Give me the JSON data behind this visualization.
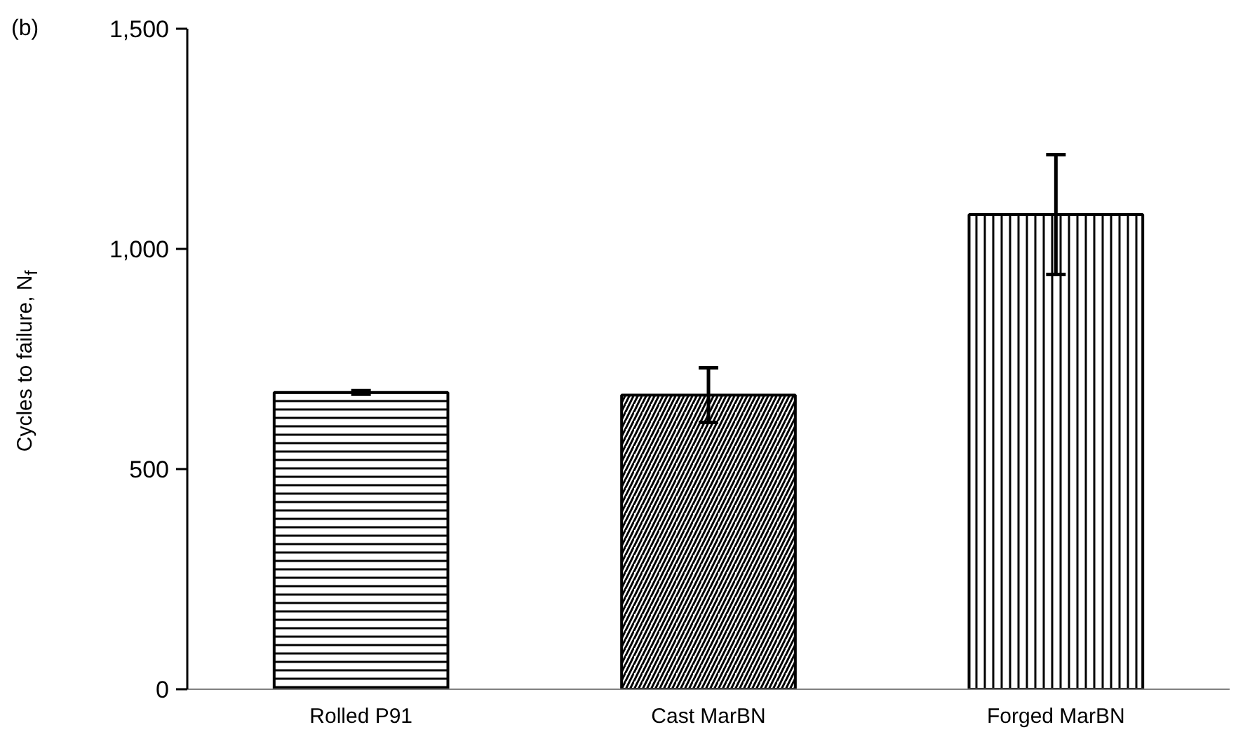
{
  "chart_data": {
    "type": "bar",
    "ylabel": "Cycles to failure, N$_{f}$",
    "annotations": [
      "(b)"
    ],
    "categories": [
      "Rolled P91",
      "Cast MarBN",
      "Forged MarBN"
    ],
    "values": [
      674,
      668,
      1078
    ],
    "errors": [
      4,
      62,
      136
    ],
    "colors": [
      "#000000",
      "#000000",
      "#000000"
    ],
    "ylim": [
      0,
      1500
    ],
    "yticks": [
      {
        "value": 0,
        "label": "0"
      },
      {
        "value": 500,
        "label": "500"
      },
      {
        "value": 1000,
        "label": "1,000"
      },
      {
        "value": 1500,
        "label": "1,500"
      }
    ],
    "grid": false
  }
}
